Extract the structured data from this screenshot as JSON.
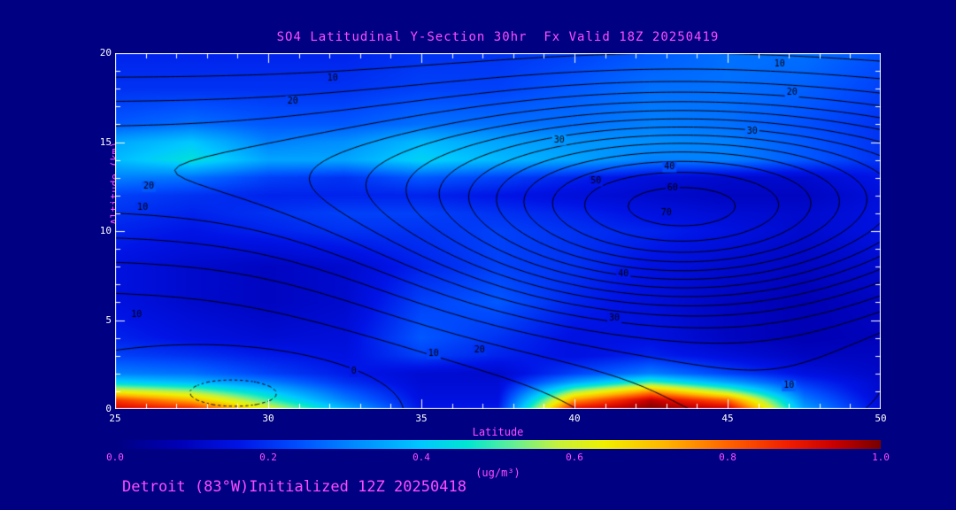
{
  "title": "SO4 Latitudinal Y-Section 30hr  Fx Valid 18Z 20250419",
  "footer": "Detroit (83°W)Initialized 12Z 20250418",
  "colors": {
    "background": "#000082",
    "accent_text": "#ff4dff",
    "axis_text": "#ffffff",
    "axis_frame": "#ffffff",
    "contour_line": "#000000"
  },
  "axes": {
    "x": {
      "label": "Latitude",
      "min": 25,
      "max": 50,
      "major_ticks": [
        25,
        30,
        35,
        40,
        45,
        50
      ],
      "minor_step": 1
    },
    "y": {
      "label": "Altitude (km)",
      "min": 0,
      "max": 20,
      "major_ticks": [
        0,
        5,
        10,
        15,
        20
      ],
      "minor_step": 1
    }
  },
  "colorbar": {
    "min": 0.0,
    "max": 1.0,
    "tick_labels": [
      "0.0",
      "0.2",
      "0.4",
      "0.6",
      "0.8",
      "1.0"
    ],
    "label": "(ug/m³)"
  },
  "chart_data": {
    "type": "heatmap",
    "title": "SO4 Latitudinal Y-Section 30hr  Fx Valid 18Z 20250419",
    "xlabel": "Latitude",
    "ylabel": "Altitude (km)",
    "units": "ug/m³",
    "xlim": [
      25,
      50
    ],
    "ylim": [
      0,
      20
    ],
    "value_range": [
      0.0,
      1.0
    ],
    "x_latitudes": [
      25,
      27.5,
      30,
      32.5,
      35,
      37.5,
      40,
      42.5,
      45,
      47.5,
      50
    ],
    "y_altitudes_km": [
      0,
      0.5,
      1,
      1.5,
      2,
      3,
      4,
      6,
      8,
      10,
      11,
      12,
      13,
      14,
      15,
      16,
      18,
      20
    ],
    "values_ugm3": [
      [
        0.93,
        0.88,
        0.62,
        0.38,
        0.16,
        0.17,
        0.92,
        1.0,
        0.95,
        0.35,
        0.14
      ],
      [
        0.85,
        0.72,
        0.5,
        0.3,
        0.15,
        0.15,
        0.75,
        0.95,
        0.8,
        0.3,
        0.13
      ],
      [
        0.62,
        0.55,
        0.4,
        0.25,
        0.14,
        0.14,
        0.55,
        0.75,
        0.55,
        0.25,
        0.12
      ],
      [
        0.42,
        0.38,
        0.3,
        0.2,
        0.13,
        0.13,
        0.35,
        0.5,
        0.35,
        0.2,
        0.12
      ],
      [
        0.3,
        0.28,
        0.22,
        0.17,
        0.13,
        0.12,
        0.22,
        0.3,
        0.22,
        0.15,
        0.11
      ],
      [
        0.22,
        0.2,
        0.17,
        0.15,
        0.22,
        0.18,
        0.15,
        0.18,
        0.14,
        0.1,
        0.1
      ],
      [
        0.18,
        0.15,
        0.13,
        0.14,
        0.25,
        0.2,
        0.15,
        0.15,
        0.1,
        0.08,
        0.09
      ],
      [
        0.15,
        0.12,
        0.1,
        0.12,
        0.22,
        0.25,
        0.18,
        0.14,
        0.1,
        0.08,
        0.1
      ],
      [
        0.15,
        0.12,
        0.1,
        0.12,
        0.18,
        0.22,
        0.2,
        0.15,
        0.12,
        0.1,
        0.12
      ],
      [
        0.18,
        0.16,
        0.18,
        0.2,
        0.2,
        0.22,
        0.2,
        0.18,
        0.15,
        0.12,
        0.15
      ],
      [
        0.2,
        0.18,
        0.2,
        0.22,
        0.22,
        0.2,
        0.18,
        0.15,
        0.13,
        0.12,
        0.15
      ],
      [
        0.22,
        0.2,
        0.18,
        0.18,
        0.18,
        0.16,
        0.14,
        0.12,
        0.1,
        0.1,
        0.14
      ],
      [
        0.3,
        0.28,
        0.22,
        0.2,
        0.25,
        0.22,
        0.18,
        0.14,
        0.12,
        0.12,
        0.16
      ],
      [
        0.38,
        0.45,
        0.35,
        0.35,
        0.42,
        0.38,
        0.35,
        0.3,
        0.3,
        0.25,
        0.2
      ],
      [
        0.35,
        0.4,
        0.3,
        0.32,
        0.38,
        0.35,
        0.33,
        0.32,
        0.3,
        0.25,
        0.2
      ],
      [
        0.25,
        0.28,
        0.25,
        0.25,
        0.28,
        0.28,
        0.28,
        0.3,
        0.28,
        0.24,
        0.2
      ],
      [
        0.2,
        0.2,
        0.2,
        0.2,
        0.22,
        0.22,
        0.25,
        0.28,
        0.28,
        0.26,
        0.22
      ],
      [
        0.18,
        0.18,
        0.18,
        0.18,
        0.2,
        0.2,
        0.22,
        0.25,
        0.28,
        0.28,
        0.24
      ]
    ],
    "colormap_stops": [
      {
        "v": 0.0,
        "c": "#000082"
      },
      {
        "v": 0.08,
        "c": "#0000b4"
      },
      {
        "v": 0.16,
        "c": "#0014e6"
      },
      {
        "v": 0.24,
        "c": "#0050ff"
      },
      {
        "v": 0.32,
        "c": "#0090ff"
      },
      {
        "v": 0.4,
        "c": "#00c8ff"
      },
      {
        "v": 0.46,
        "c": "#00e6d2"
      },
      {
        "v": 0.52,
        "c": "#64f096"
      },
      {
        "v": 0.58,
        "c": "#c8f03c"
      },
      {
        "v": 0.64,
        "c": "#f0f000"
      },
      {
        "v": 0.72,
        "c": "#ffb400"
      },
      {
        "v": 0.8,
        "c": "#ff6400"
      },
      {
        "v": 0.88,
        "c": "#f01e00"
      },
      {
        "v": 0.94,
        "c": "#c80000"
      },
      {
        "v": 1.0,
        "c": "#780000"
      }
    ],
    "contour_overlay": {
      "levels": [
        -5,
        0,
        5,
        10,
        15,
        20,
        25,
        30,
        35,
        40,
        45,
        50,
        55,
        60,
        65,
        70,
        75
      ],
      "dashed_below": 0,
      "gaussians": [
        {
          "amp": 58,
          "lat": 43.5,
          "lat_s": 72,
          "alt": 10.5,
          "alt_s": 34
        },
        {
          "amp": 24,
          "alt": 13.5,
          "alt_s": 30
        },
        {
          "amp": -6,
          "lat": 29,
          "lat_s": 18,
          "alt": 1,
          "alt_s": 5
        },
        {
          "amp": 10,
          "lat": 47,
          "lat_s": 40,
          "alt": 0,
          "alt_s": 20
        }
      ],
      "labels": [
        [
          10,
          32.1,
          18.6
        ],
        [
          20,
          30.8,
          17.3
        ],
        [
          10,
          46.7,
          19.4
        ],
        [
          20,
          47.1,
          17.8
        ],
        [
          30,
          45.8,
          15.6
        ],
        [
          30,
          39.5,
          15.1
        ],
        [
          40,
          43.1,
          13.6
        ],
        [
          50,
          40.7,
          12.8
        ],
        [
          60,
          43.2,
          12.4
        ],
        [
          70,
          43.0,
          11.0
        ],
        [
          20,
          26.1,
          12.5
        ],
        [
          10,
          25.9,
          11.3
        ],
        [
          10,
          25.7,
          5.3
        ],
        [
          0,
          32.8,
          2.1
        ],
        [
          10,
          35.4,
          3.1
        ],
        [
          20,
          36.9,
          3.3
        ],
        [
          30,
          41.3,
          5.1
        ],
        [
          40,
          41.6,
          7.6
        ],
        [
          10,
          47.0,
          1.3
        ]
      ]
    }
  }
}
